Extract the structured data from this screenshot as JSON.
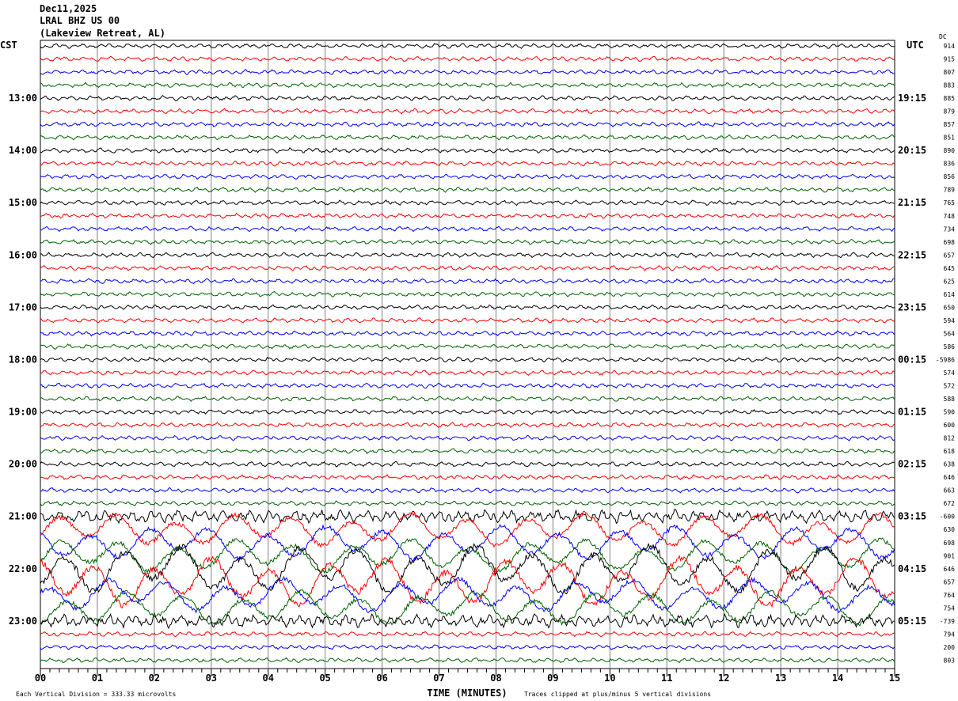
{
  "header": {
    "date": "Dec11,2025",
    "station": "LRAL BHZ US 00",
    "location": "(Lakeview Retreat, AL)"
  },
  "chart_data": {
    "type": "line",
    "left_timezone": "CST",
    "right_timezone": "UTC",
    "dc_label": "DC",
    "xlabel": "TIME (MINUTES)",
    "xlim": [
      0,
      15
    ],
    "x_ticks": [
      "00",
      "01",
      "02",
      "03",
      "04",
      "05",
      "06",
      "07",
      "08",
      "09",
      "10",
      "11",
      "12",
      "13",
      "14",
      "15"
    ],
    "left_hour_labels": [
      "13:00",
      "14:00",
      "15:00",
      "16:00",
      "17:00",
      "18:00",
      "19:00",
      "20:00",
      "21:00",
      "22:00",
      "23:00"
    ],
    "right_hour_labels": [
      "19:15",
      "20:15",
      "21:15",
      "22:15",
      "23:15",
      "00:15",
      "01:15",
      "02:15",
      "03:15",
      "04:15",
      "05:15"
    ],
    "trace_colors": [
      "#000000",
      "#ff0000",
      "#0000ff",
      "#006400"
    ],
    "traces_per_hour": 4,
    "trace_count": 48,
    "dc_offsets": [
      "914",
      "915",
      "807",
      "883",
      "885",
      "879",
      "857",
      "851",
      "890",
      "836",
      "856",
      "789",
      "765",
      "748",
      "734",
      "698",
      "657",
      "645",
      "625",
      "614",
      "650",
      "594",
      "564",
      "586",
      "-5986",
      "574",
      "572",
      "588",
      "590",
      "600",
      "812",
      "618",
      "638",
      "646",
      "663",
      "672",
      "-600",
      "630",
      "698",
      "901",
      "646",
      "657",
      "764",
      "754",
      "-739",
      "794",
      "200",
      "803"
    ],
    "high_amplitude_window": [
      "21:00",
      "22:45"
    ],
    "scale_note": "Each Vertical Division =  333.33 microvolts",
    "clip_note": "Traces clipped at plus/minus 5 vertical divisions",
    "grid": true
  }
}
